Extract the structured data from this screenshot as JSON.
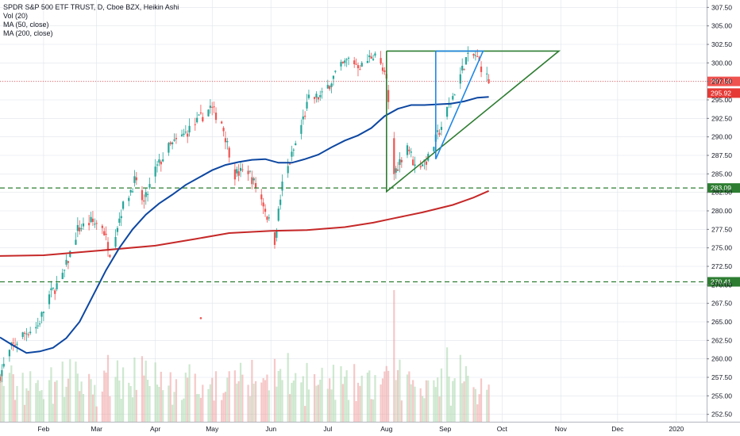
{
  "legend": {
    "title": "SPDR S&P 500 ETF TRUST, D, Cboe BZX, Heikin Ashi",
    "vol": "Vol (20)",
    "ma50": "MA (50, close)",
    "ma200": "MA (200, close)"
  },
  "chart_data": {
    "type": "candlestick",
    "instrument": "SPDR S&P 500 ETF TRUST",
    "interval": "D",
    "exchange": "Cboe BZX",
    "style": "Heikin Ashi",
    "grid": true,
    "ylim": [
      251.5,
      308.5
    ],
    "xlim": [
      "2019-01-09",
      "2020-01-17"
    ],
    "y_ticks": [
      "307.50",
      "305.00",
      "302.50",
      "300.00",
      "297.50",
      "295.00",
      "292.50",
      "290.00",
      "287.50",
      "285.00",
      "282.50",
      "280.00",
      "277.50",
      "275.00",
      "272.50",
      "270.00",
      "267.50",
      "265.00",
      "262.50",
      "260.00",
      "257.50",
      "255.00",
      "252.50"
    ],
    "x_ticks": [
      {
        "label": "Feb",
        "date": "2019-02-01"
      },
      {
        "label": "Mar",
        "date": "2019-03-01"
      },
      {
        "label": "Apr",
        "date": "2019-04-01"
      },
      {
        "label": "May",
        "date": "2019-05-01"
      },
      {
        "label": "Jun",
        "date": "2019-06-01"
      },
      {
        "label": "Jul",
        "date": "2019-07-01"
      },
      {
        "label": "Aug",
        "date": "2019-08-01"
      },
      {
        "label": "Sep",
        "date": "2019-09-01"
      },
      {
        "label": "Oct",
        "date": "2019-10-01"
      },
      {
        "label": "Nov",
        "date": "2019-11-01"
      },
      {
        "label": "Dec",
        "date": "2019-12-01"
      },
      {
        "label": "2020",
        "date": "2020-01-01"
      }
    ],
    "price_path": [
      [
        "2019-01-09",
        257.8
      ],
      [
        "2019-01-15",
        261.5
      ],
      [
        "2019-01-22",
        263.5
      ],
      [
        "2019-01-29",
        264.5
      ],
      [
        "2019-02-04",
        268.5
      ],
      [
        "2019-02-11",
        271.0
      ],
      [
        "2019-02-19",
        277.5
      ],
      [
        "2019-02-26",
        278.5
      ],
      [
        "2019-03-04",
        278.0
      ],
      [
        "2019-03-08",
        274.5
      ],
      [
        "2019-03-14",
        280.0
      ],
      [
        "2019-03-21",
        284.0
      ],
      [
        "2019-03-26",
        281.0
      ],
      [
        "2019-04-01",
        285.5
      ],
      [
        "2019-04-08",
        288.5
      ],
      [
        "2019-04-15",
        290.0
      ],
      [
        "2019-04-23",
        292.0
      ],
      [
        "2019-04-30",
        294.0
      ],
      [
        "2019-05-06",
        292.0
      ],
      [
        "2019-05-13",
        285.0
      ],
      [
        "2019-05-20",
        285.5
      ],
      [
        "2019-05-28",
        281.0
      ],
      [
        "2019-06-03",
        276.0
      ],
      [
        "2019-06-07",
        283.5
      ],
      [
        "2019-06-14",
        289.0
      ],
      [
        "2019-06-21",
        295.0
      ],
      [
        "2019-06-28",
        295.5
      ],
      [
        "2019-07-05",
        298.5
      ],
      [
        "2019-07-12",
        300.5
      ],
      [
        "2019-07-19",
        299.5
      ],
      [
        "2019-07-26",
        301.5
      ],
      [
        "2019-08-01",
        297.5
      ],
      [
        "2019-08-05",
        285.0
      ],
      [
        "2019-08-12",
        289.0
      ],
      [
        "2019-08-16",
        286.0
      ],
      [
        "2019-08-23",
        287.0
      ],
      [
        "2019-08-30",
        291.5
      ],
      [
        "2019-09-05",
        295.5
      ],
      [
        "2019-09-12",
        300.5
      ],
      [
        "2019-09-17",
        301.0
      ],
      [
        "2019-09-24",
        297.5
      ]
    ],
    "ma50": [
      [
        "2019-01-09",
        262.9
      ],
      [
        "2019-01-16",
        261.8
      ],
      [
        "2019-01-23",
        260.8
      ],
      [
        "2019-01-30",
        261.0
      ],
      [
        "2019-02-06",
        261.5
      ],
      [
        "2019-02-13",
        262.8
      ],
      [
        "2019-02-20",
        265.0
      ],
      [
        "2019-02-27",
        268.5
      ],
      [
        "2019-03-06",
        272.0
      ],
      [
        "2019-03-13",
        275.0
      ],
      [
        "2019-03-20",
        277.5
      ],
      [
        "2019-03-27",
        279.5
      ],
      [
        "2019-04-03",
        281.0
      ],
      [
        "2019-04-10",
        282.2
      ],
      [
        "2019-04-17",
        283.5
      ],
      [
        "2019-04-24",
        284.5
      ],
      [
        "2019-05-01",
        285.5
      ],
      [
        "2019-05-08",
        286.2
      ],
      [
        "2019-05-15",
        286.6
      ],
      [
        "2019-05-22",
        286.9
      ],
      [
        "2019-05-29",
        287.0
      ],
      [
        "2019-06-05",
        286.5
      ],
      [
        "2019-06-12",
        286.5
      ],
      [
        "2019-06-19",
        287.0
      ],
      [
        "2019-06-26",
        287.6
      ],
      [
        "2019-07-03",
        288.6
      ],
      [
        "2019-07-10",
        289.5
      ],
      [
        "2019-07-17",
        290.2
      ],
      [
        "2019-07-24",
        291.2
      ],
      [
        "2019-07-31",
        292.8
      ],
      [
        "2019-08-07",
        293.8
      ],
      [
        "2019-08-14",
        294.3
      ],
      [
        "2019-08-21",
        294.3
      ],
      [
        "2019-08-28",
        294.4
      ],
      [
        "2019-09-04",
        294.5
      ],
      [
        "2019-09-11",
        294.8
      ],
      [
        "2019-09-18",
        295.3
      ],
      [
        "2019-09-24",
        295.4
      ]
    ],
    "ma200": [
      [
        "2019-01-09",
        273.9
      ],
      [
        "2019-02-01",
        274.0
      ],
      [
        "2019-03-01",
        274.6
      ],
      [
        "2019-04-01",
        275.3
      ],
      [
        "2019-04-22",
        276.2
      ],
      [
        "2019-05-10",
        277.0
      ],
      [
        "2019-06-01",
        277.3
      ],
      [
        "2019-06-20",
        277.4
      ],
      [
        "2019-07-10",
        277.8
      ],
      [
        "2019-07-25",
        278.4
      ],
      [
        "2019-08-05",
        279.0
      ],
      [
        "2019-08-20",
        279.8
      ],
      [
        "2019-09-05",
        280.8
      ],
      [
        "2019-09-16",
        281.8
      ],
      [
        "2019-09-24",
        282.7
      ]
    ],
    "horizontal_levels": [
      {
        "value": 283.09,
        "label": "283.09",
        "color": "#2e7d32"
      },
      {
        "value": 270.41,
        "label": "270.41",
        "color": "#2e7d32"
      }
    ],
    "price_badges": [
      {
        "value": 297.5,
        "label": "297.50",
        "color": "#ef5350"
      },
      {
        "value": 295.92,
        "label": "295.92",
        "color": "#e53935"
      }
    ],
    "current_price_line": 297.5,
    "drawings": [
      {
        "color": "#2e7d32",
        "points": [
          [
            "2019-08-01",
            301.6
          ],
          [
            "2019-10-31",
            301.6
          ],
          [
            "2019-08-01",
            282.6
          ],
          [
            "2019-08-01",
            301.6
          ]
        ]
      },
      {
        "color": "#1e88e5",
        "points": [
          [
            "2019-08-27",
            301.6
          ],
          [
            "2019-09-21",
            301.6
          ],
          [
            "2019-08-27",
            287.0
          ],
          [
            "2019-08-27",
            301.6
          ]
        ]
      }
    ],
    "colors": {
      "up": "#26a69a",
      "down": "#ef5350",
      "ma50": "#0d47a1",
      "ma200": "#c62828",
      "volume_up": "#a5d6a7",
      "volume_down": "#ef9a9a",
      "grid": "#e0e3eb"
    }
  }
}
